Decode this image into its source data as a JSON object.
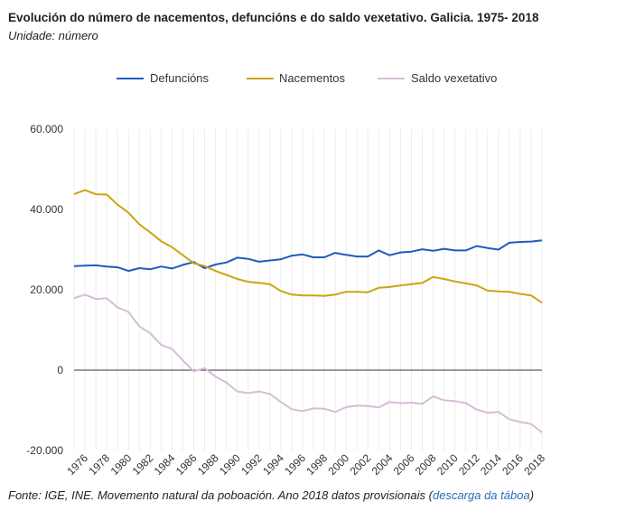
{
  "header": {
    "title": "Evolución do número de nacementos, defuncións e do saldo vexetativo. Galicia. 1975-",
    "title_year": "2018",
    "subtitle": "Unidade: número"
  },
  "footer": {
    "source": "Fonte: IGE, INE. Movemento natural da poboación. Ano 2018 datos provisionais",
    "link_open": "(",
    "link_text": "descarga da táboa",
    "link_close": ")"
  },
  "chart_data": {
    "type": "line",
    "x": [
      1975,
      1976,
      1977,
      1978,
      1979,
      1980,
      1981,
      1982,
      1983,
      1984,
      1985,
      1986,
      1987,
      1988,
      1989,
      1990,
      1991,
      1992,
      1993,
      1994,
      1995,
      1996,
      1997,
      1998,
      1999,
      2000,
      2001,
      2002,
      2003,
      2004,
      2005,
      2006,
      2007,
      2008,
      2009,
      2010,
      2011,
      2012,
      2013,
      2014,
      2015,
      2016,
      2017,
      2018
    ],
    "x_tick_labels": [
      "1976",
      "1978",
      "1980",
      "1982",
      "1984",
      "1986",
      "1988",
      "1990",
      "1992",
      "1994",
      "1996",
      "1998",
      "2000",
      "2002",
      "2004",
      "2006",
      "2008",
      "2010",
      "2012",
      "2014",
      "2016",
      "2018"
    ],
    "y_tick_labels": [
      "60.000",
      "40.000",
      "20.000",
      "0",
      "-20.000"
    ],
    "y_ticks": [
      60000,
      40000,
      20000,
      0,
      -20000
    ],
    "ylim": [
      -20000,
      60000
    ],
    "series": [
      {
        "name": "Defuncións",
        "color": "#1f5bbf",
        "values": [
          25900,
          26000,
          26100,
          25800,
          25600,
          24700,
          25400,
          25100,
          25800,
          25300,
          26200,
          26900,
          25400,
          26300,
          26800,
          28000,
          27700,
          27000,
          27300,
          27600,
          28500,
          28800,
          28100,
          28100,
          29200,
          28700,
          28300,
          28300,
          29800,
          28600,
          29300,
          29500,
          30100,
          29700,
          30200,
          29800,
          29800,
          30900,
          30400,
          30000,
          31700,
          31900,
          32000,
          32300
        ]
      },
      {
        "name": "Nacementos",
        "color": "#c9a60c",
        "values": [
          43800,
          44800,
          43800,
          43700,
          41200,
          39200,
          36300,
          34300,
          32100,
          30600,
          28600,
          26600,
          25900,
          24700,
          23700,
          22700,
          22000,
          21700,
          21400,
          19700,
          18800,
          18600,
          18600,
          18500,
          18800,
          19500,
          19500,
          19400,
          20500,
          20700,
          21100,
          21400,
          21700,
          23200,
          22700,
          22100,
          21600,
          21100,
          19800,
          19600,
          19500,
          19000,
          18600,
          16800
        ]
      },
      {
        "name": "Saldo vexetativo",
        "color": "#d6bdd8",
        "values": [
          17900,
          18800,
          17700,
          17900,
          15600,
          14500,
          10900,
          9200,
          6300,
          5300,
          2400,
          -300,
          500,
          -1600,
          -3100,
          -5300,
          -5700,
          -5300,
          -5900,
          -7900,
          -9700,
          -10200,
          -9500,
          -9600,
          -10400,
          -9200,
          -8800,
          -8900,
          -9300,
          -7900,
          -8200,
          -8100,
          -8400,
          -6500,
          -7500,
          -7700,
          -8200,
          -9800,
          -10600,
          -10400,
          -12200,
          -12900,
          -13400,
          -15500
        ]
      }
    ],
    "legend_position": "top-center",
    "grid": "vertical",
    "zero_line": true
  }
}
